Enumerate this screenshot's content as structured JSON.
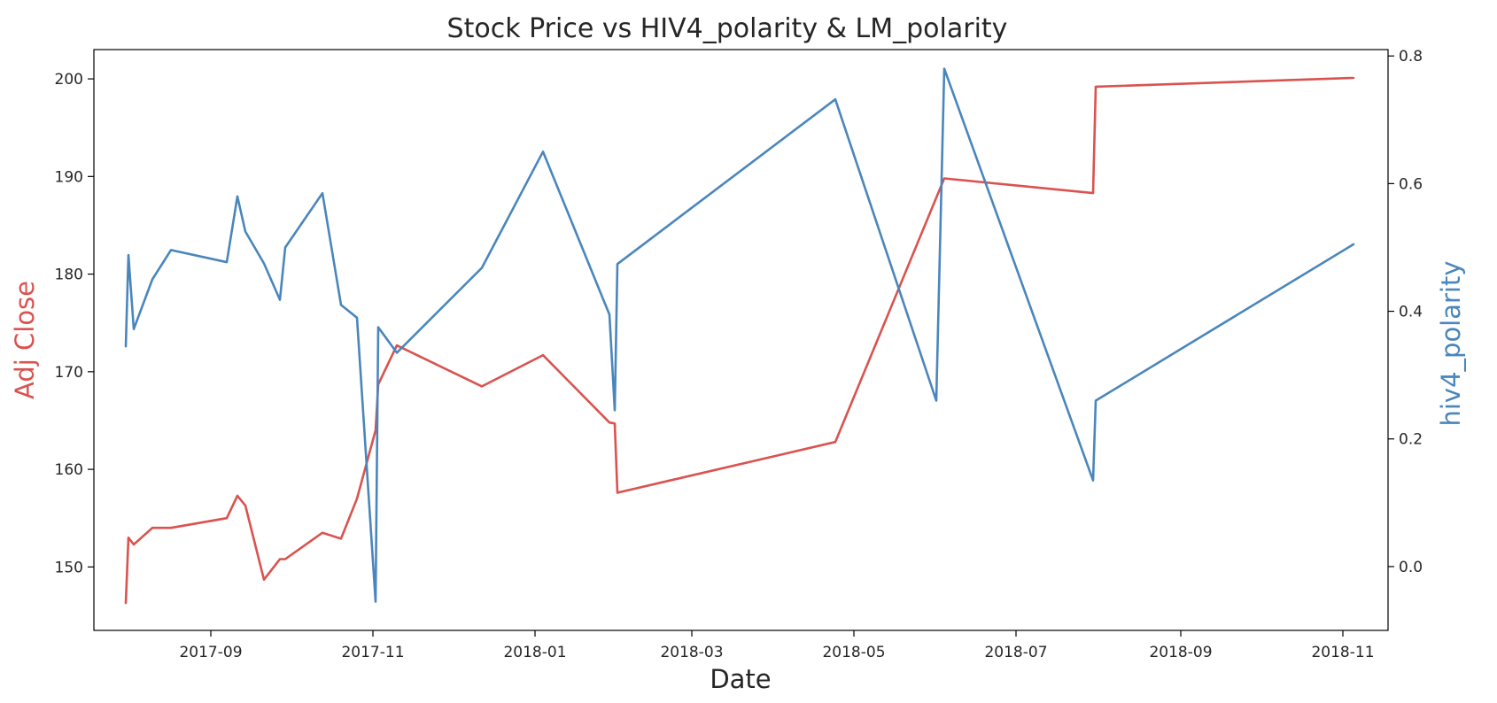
{
  "chart_data": {
    "type": "line",
    "title": "Stock Price vs HIV4_polarity & LM_polarity",
    "xlabel": "Date",
    "ylabel": "Adj Close",
    "ylabel_right": "hiv4_polarity",
    "x_ticks": [
      "2017-09",
      "2017-11",
      "2018-01",
      "2018-03",
      "2018-05",
      "2018-07",
      "2018-09",
      "2018-11"
    ],
    "xlim": [
      "2017-07-19",
      "2018-11-18"
    ],
    "ylim": [
      143.5,
      203
    ],
    "ylim_right": [
      -0.1,
      0.81
    ],
    "y_ticks": [
      150,
      160,
      170,
      180,
      190,
      200
    ],
    "y_ticks_right": [
      0.0,
      0.2,
      0.4,
      0.6,
      0.8
    ],
    "grid": false,
    "colors": {
      "adj_close": "#d9534f",
      "hiv4_polarity": "#4a86bc"
    },
    "series": [
      {
        "axis": "left",
        "color": "#d9534f",
        "x": [
          "2017-07-31",
          "2017-08-01",
          "2017-08-03",
          "2017-08-10",
          "2017-08-17",
          "2017-09-07",
          "2017-09-11",
          "2017-09-14",
          "2017-09-21",
          "2017-09-27",
          "2017-09-29",
          "2017-10-13",
          "2017-10-20",
          "2017-10-26",
          "2017-11-02",
          "2017-11-03",
          "2017-11-10",
          "2017-12-12",
          "2018-01-04",
          "2018-01-29",
          "2018-01-31",
          "2018-02-01",
          "2018-04-24",
          "2018-06-04",
          "2018-07-30",
          "2018-07-31",
          "2018-11-05"
        ],
        "values": [
          146.3,
          153.0,
          152.3,
          154.0,
          154.0,
          155.0,
          157.3,
          156.3,
          148.7,
          150.8,
          150.8,
          153.5,
          152.9,
          157.0,
          164.0,
          168.7,
          172.7,
          168.5,
          171.7,
          164.8,
          164.7,
          157.6,
          162.8,
          189.8,
          188.3,
          199.2,
          200.1
        ]
      },
      {
        "axis": "right",
        "color": "#4a86bc",
        "x": [
          "2017-07-31",
          "2017-08-01",
          "2017-08-03",
          "2017-08-10",
          "2017-08-17",
          "2017-09-07",
          "2017-09-11",
          "2017-09-14",
          "2017-09-21",
          "2017-09-27",
          "2017-09-29",
          "2017-10-13",
          "2017-10-20",
          "2017-10-26",
          "2017-11-02",
          "2017-11-03",
          "2017-11-10",
          "2017-12-12",
          "2018-01-04",
          "2018-01-29",
          "2018-01-31",
          "2018-02-01",
          "2018-04-24",
          "2018-06-01",
          "2018-06-04",
          "2018-07-30",
          "2018-07-31",
          "2018-11-05"
        ],
        "values": [
          0.345,
          0.488,
          0.372,
          0.45,
          0.496,
          0.477,
          0.58,
          0.525,
          0.475,
          0.418,
          0.5,
          0.585,
          0.41,
          0.39,
          -0.055,
          0.375,
          0.335,
          0.468,
          0.65,
          0.395,
          0.245,
          0.474,
          0.732,
          0.26,
          0.78,
          0.135,
          0.26,
          0.505
        ]
      }
    ]
  }
}
